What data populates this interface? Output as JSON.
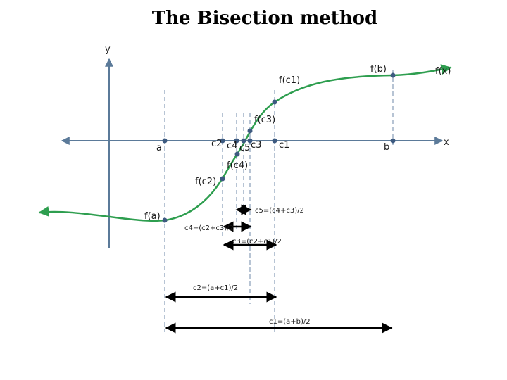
{
  "title": "The Bisection method",
  "axes": {
    "y_label": "y",
    "x_label": "x",
    "curve_label": "f(x)"
  },
  "x_points": {
    "a": "a",
    "b": "b",
    "c1": "c1",
    "c2": "c2",
    "c3": "c3",
    "c4": "c4",
    "c5": "c5"
  },
  "f_points": {
    "fa": "f(a)",
    "fb": "f(b)",
    "fc1": "f(c1)",
    "fc2": "f(c2)",
    "fc3": "f(c3)",
    "fc4": "f(c4)"
  },
  "intervals": {
    "c1": "c1=(a+b)/2",
    "c2": "c2=(a+c1)/2",
    "c3": "c3=(c2+c1)/2",
    "c4": "c4=(c2+c3)/2",
    "c5": "c5=(c4+c3)/2"
  },
  "colors": {
    "curve": "#2e9e4f",
    "axis": "#5b7a99",
    "point": "#3d5a80",
    "arrow": "#000000"
  }
}
